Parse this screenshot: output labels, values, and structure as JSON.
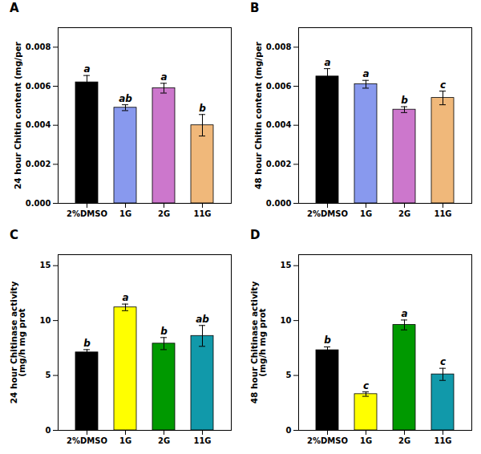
{
  "chart_data": [
    {
      "type": "bar",
      "title": "A",
      "ylabel": "24 hour Chitin content (mg/per",
      "categories": [
        "2%DMSO",
        "1G",
        "2G",
        "11G"
      ],
      "values": [
        0.0062,
        0.0049,
        0.0059,
        0.004
      ],
      "errors": [
        0.00035,
        0.00015,
        0.00025,
        0.00055
      ],
      "colors": [
        "#000000",
        "#8899ee",
        "#cc77cc",
        "#f0b87a"
      ],
      "annotations": [
        "a",
        "ab",
        "a",
        "b"
      ],
      "ylim": [
        0,
        0.009
      ],
      "yticks": [
        {
          "value": 0,
          "label": "0.000"
        },
        0.002,
        0.004,
        0.006,
        0.008
      ]
    },
    {
      "type": "bar",
      "title": "B",
      "ylabel": "48 hour Chitin content (mg/per",
      "categories": [
        "2%DMSO",
        "1G",
        "2G",
        "11G"
      ],
      "values": [
        0.0065,
        0.0061,
        0.0048,
        0.0054
      ],
      "errors": [
        0.0004,
        0.0002,
        0.00015,
        0.00035
      ],
      "colors": [
        "#000000",
        "#8899ee",
        "#cc77cc",
        "#f0b87a"
      ],
      "annotations": [
        "a",
        "a",
        "b",
        "c"
      ],
      "ylim": [
        0,
        0.009
      ],
      "yticks": [
        {
          "value": 0,
          "label": "0.000"
        },
        0.002,
        0.004,
        0.006,
        0.008
      ]
    },
    {
      "type": "bar",
      "title": "C",
      "ylabel": "24 hour Chitinase activity\n(mg/h mg prot",
      "categories": [
        "2%DMSO",
        "1G",
        "2G",
        "11G"
      ],
      "values": [
        7.1,
        11.2,
        7.9,
        8.6
      ],
      "errors": [
        0.25,
        0.3,
        0.55,
        0.95
      ],
      "colors": [
        "#000000",
        "#ffff00",
        "#009900",
        "#1199aa"
      ],
      "annotations": [
        "b",
        "a",
        "b",
        "ab"
      ],
      "ylim": [
        0,
        16
      ],
      "yticks": [
        0,
        5,
        10,
        15
      ]
    },
    {
      "type": "bar",
      "title": "D",
      "ylabel": "48 hour Chitinase activity\n(mg/h mg prot",
      "categories": [
        "2%DMSO",
        "1G",
        "2G",
        "11G"
      ],
      "values": [
        7.3,
        3.3,
        9.6,
        5.1
      ],
      "errors": [
        0.3,
        0.2,
        0.45,
        0.55
      ],
      "colors": [
        "#000000",
        "#ffff00",
        "#009900",
        "#1199aa"
      ],
      "annotations": [
        "b",
        "c",
        "a",
        "c"
      ],
      "ylim": [
        0,
        16
      ],
      "yticks": [
        0,
        5,
        10,
        15
      ]
    }
  ]
}
